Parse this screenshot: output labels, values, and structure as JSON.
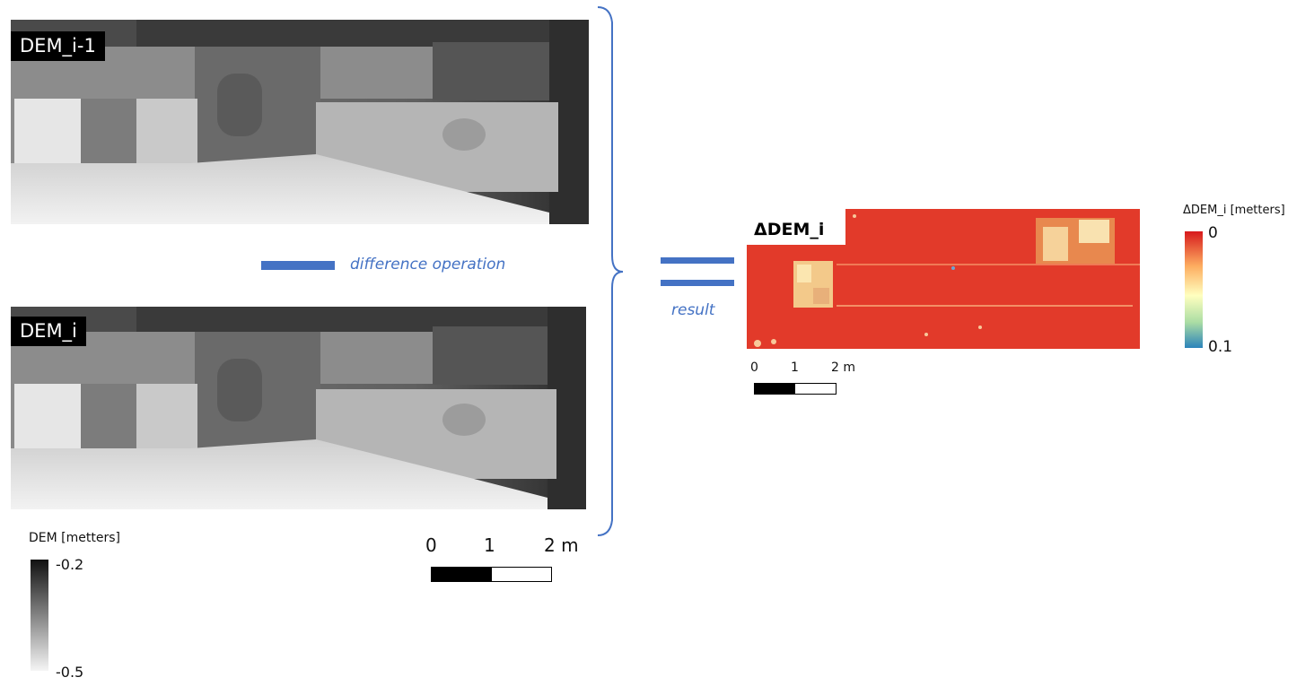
{
  "panels": {
    "dem_prev": {
      "label": "DEM_i-1"
    },
    "dem_curr": {
      "label": "DEM_i"
    },
    "delta": {
      "label": "ΔDEM_i"
    }
  },
  "operation": {
    "difference_label": "difference operation",
    "result_label": "result",
    "accent_color": "#4472c4"
  },
  "dem_scale": {
    "ticks": [
      "0",
      "1",
      "2 m"
    ]
  },
  "delta_scale": {
    "ticks": [
      "0",
      "1",
      "2 m"
    ]
  },
  "dem_legend": {
    "title": "DEM [metters]",
    "max_label": "-0.2",
    "min_label": "-0.5",
    "colors": [
      "#111111",
      "#f5f5f5"
    ]
  },
  "delta_legend": {
    "title": "ΔDEM_i [metters]",
    "top_label": "0",
    "bottom_label": "0.1",
    "colors": [
      "#d7191c",
      "#fdae61",
      "#ffffbf",
      "#abdda4",
      "#2b83ba"
    ]
  }
}
